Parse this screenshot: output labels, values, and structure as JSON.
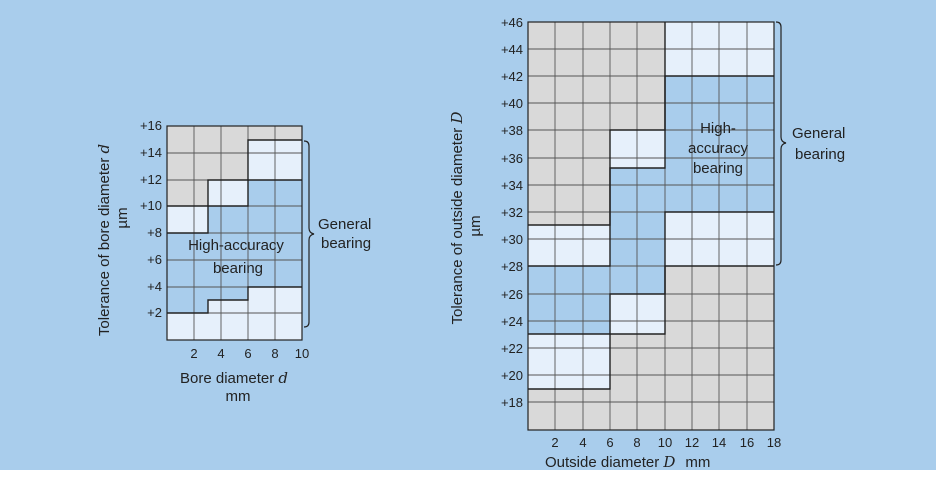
{
  "colors": {
    "background": "#a9cdec",
    "grid_panel": "#d9d9d9",
    "high_accuracy": "#a9cdec",
    "general_band": "#e6f0fb",
    "grid_line": "#555555"
  },
  "left_chart": {
    "x_ticks": [
      "2",
      "4",
      "6",
      "8",
      "10"
    ],
    "y_ticks": [
      "+2",
      "+4",
      "+6",
      "+8",
      "+10",
      "+12",
      "+14",
      "+16"
    ],
    "x_label": "Bore diameter ",
    "x_label_var": "d",
    "x_unit": "mm",
    "y_label": "Tolerance of bore diameter ",
    "y_label_var": "d",
    "y_unit": "µm",
    "inner_label_line1": "High-accuracy",
    "inner_label_line2": "bearing",
    "bracket_label_line1": "General",
    "bracket_label_line2": "bearing"
  },
  "right_chart": {
    "x_ticks": [
      "2",
      "4",
      "6",
      "8",
      "10",
      "12",
      "14",
      "16",
      "18"
    ],
    "y_ticks": [
      "+18",
      "+20",
      "+22",
      "+24",
      "+26",
      "+28",
      "+30",
      "+32",
      "+34",
      "+36",
      "+38",
      "+40",
      "+42",
      "+44",
      "+46"
    ],
    "x_label": "Outside diameter ",
    "x_label_var": "D",
    "x_unit": "mm",
    "y_label": "Tolerance of outside diameter ",
    "y_label_var": "D",
    "y_unit": "µm",
    "inner_label_line1": "High-",
    "inner_label_line2": "accuracy",
    "inner_label_line3": "bearing",
    "bracket_label_line1": "General",
    "bracket_label_line2": "bearing"
  }
}
